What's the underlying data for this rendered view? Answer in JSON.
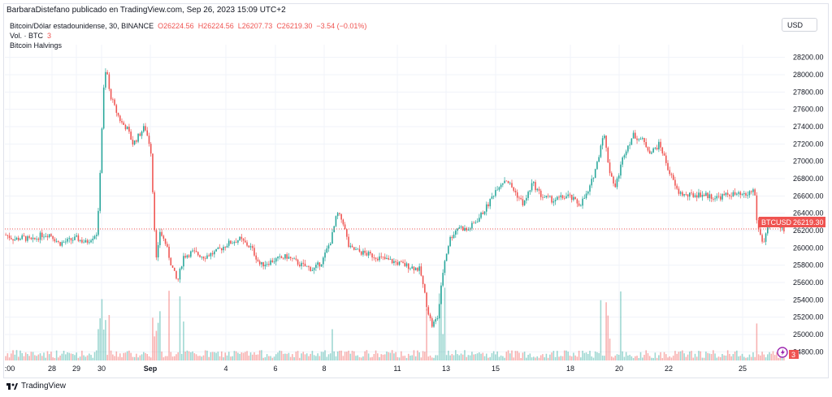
{
  "header": {
    "publisher_line": "BarbaraDistefano publicado en TradingView.com, Sep 26, 2023 15:09 UTC+2"
  },
  "legend": {
    "symbol_line": "Bitcoin/Dólar estadounidense, 30, BINANCE",
    "open": "O26224.56",
    "high": "H26224.56",
    "low": "L26207.73",
    "close": "C26219.30",
    "change": "−3.54 (−0.01%)",
    "volume_label": "Vol. · BTC",
    "volume_value": "3",
    "indicator": "Bitcoin Halvings"
  },
  "currency_button": "USD",
  "price_tag": {
    "symbol": "BTCUSD",
    "value": "26219.30"
  },
  "volume_badge": "3",
  "footer": {
    "brand": "TradingView"
  },
  "colors": {
    "up": "#26a69a",
    "down": "#ef5350",
    "grid": "#f0f3fa",
    "text": "#131722"
  },
  "chart_data": {
    "type": "candlestick",
    "y_ticks": [
      "28200.00",
      "28000.00",
      "27800.00",
      "27600.00",
      "27400.00",
      "27200.00",
      "27000.00",
      "26800.00",
      "26600.00",
      "26400.00",
      "26200.00",
      "26000.00",
      "25800.00",
      "25600.00",
      "25400.00",
      "25200.00",
      "25000.00",
      "24800.00"
    ],
    "x_ticks": [
      ":00",
      "28",
      "29",
      "30",
      "Sep",
      "4",
      "6",
      "8",
      "11",
      "13",
      "15",
      "18",
      "20",
      "22",
      "25"
    ],
    "ylim": [
      24700,
      28300
    ],
    "last_price": 26219.3,
    "price_path": [
      [
        0,
        26150
      ],
      [
        6,
        26100
      ],
      [
        12,
        26120
      ],
      [
        18,
        26080
      ],
      [
        24,
        26150
      ],
      [
        30,
        26160
      ],
      [
        36,
        26050
      ],
      [
        42,
        26080
      ],
      [
        48,
        26110
      ],
      [
        54,
        26060
      ],
      [
        58,
        26120
      ],
      [
        62,
        26180
      ],
      [
        66,
        27800
      ],
      [
        68,
        28100
      ],
      [
        70,
        27800
      ],
      [
        74,
        27600
      ],
      [
        78,
        27450
      ],
      [
        82,
        27380
      ],
      [
        86,
        27200
      ],
      [
        90,
        27300
      ],
      [
        94,
        27400
      ],
      [
        98,
        27150
      ],
      [
        100,
        26400
      ],
      [
        102,
        25800
      ],
      [
        104,
        26200
      ],
      [
        108,
        26050
      ],
      [
        112,
        25800
      ],
      [
        116,
        25600
      ],
      [
        120,
        25900
      ],
      [
        126,
        25950
      ],
      [
        134,
        25900
      ],
      [
        142,
        25950
      ],
      [
        150,
        26050
      ],
      [
        158,
        26100
      ],
      [
        166,
        26000
      ],
      [
        172,
        25800
      ],
      [
        180,
        25850
      ],
      [
        190,
        25900
      ],
      [
        200,
        25800
      ],
      [
        208,
        25750
      ],
      [
        214,
        25850
      ],
      [
        220,
        26100
      ],
      [
        224,
        26400
      ],
      [
        228,
        26300
      ],
      [
        232,
        26000
      ],
      [
        240,
        25950
      ],
      [
        250,
        25900
      ],
      [
        260,
        25850
      ],
      [
        270,
        25800
      ],
      [
        280,
        25750
      ],
      [
        285,
        25300
      ],
      [
        288,
        25100
      ],
      [
        292,
        25200
      ],
      [
        296,
        25800
      ],
      [
        300,
        26100
      ],
      [
        306,
        26250
      ],
      [
        312,
        26200
      ],
      [
        320,
        26350
      ],
      [
        326,
        26500
      ],
      [
        332,
        26700
      ],
      [
        338,
        26800
      ],
      [
        344,
        26650
      ],
      [
        350,
        26500
      ],
      [
        356,
        26750
      ],
      [
        362,
        26600
      ],
      [
        370,
        26550
      ],
      [
        380,
        26600
      ],
      [
        388,
        26500
      ],
      [
        394,
        26650
      ],
      [
        400,
        27000
      ],
      [
        404,
        27350
      ],
      [
        408,
        26900
      ],
      [
        412,
        26700
      ],
      [
        418,
        27100
      ],
      [
        424,
        27300
      ],
      [
        430,
        27250
      ],
      [
        436,
        27100
      ],
      [
        442,
        27200
      ],
      [
        448,
        26900
      ],
      [
        454,
        26650
      ],
      [
        460,
        26600
      ],
      [
        470,
        26620
      ],
      [
        480,
        26580
      ],
      [
        490,
        26620
      ],
      [
        500,
        26600
      ],
      [
        506,
        26680
      ],
      [
        508,
        26250
      ],
      [
        512,
        26050
      ],
      [
        516,
        26300
      ],
      [
        520,
        26280
      ],
      [
        526,
        26219
      ]
    ]
  }
}
